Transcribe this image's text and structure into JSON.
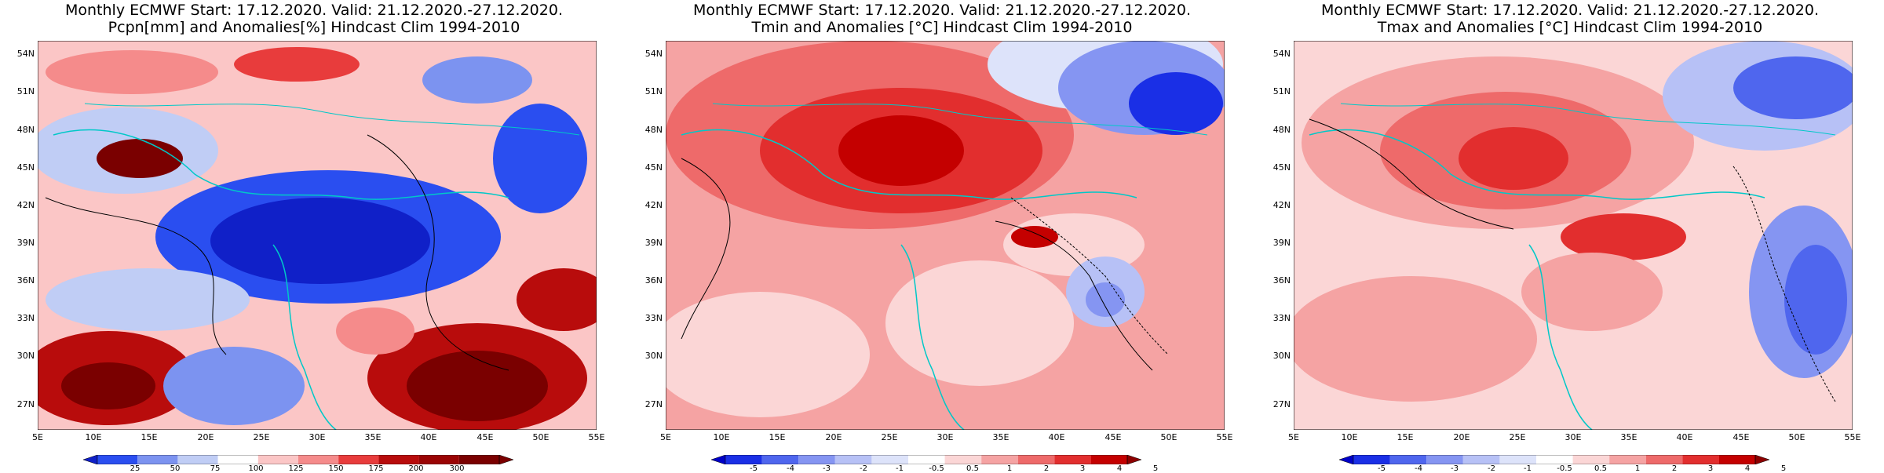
{
  "panels": [
    {
      "title1": "Monthly ECMWF Start: 17.12.2020. Valid: 21.12.2020.-27.12.2020.",
      "title2": "Pcpn[mm] and Anomalies[%] Hindcast Clim 1994-2010",
      "colorbar_labels": [
        "25",
        "50",
        "75",
        "100",
        "125",
        "150",
        "175",
        "200",
        "300"
      ],
      "colorbar_colors": [
        "#1020c8",
        "#2a4ef0",
        "#7c93f0",
        "#c0cdf5",
        "#ffffff",
        "#fbc6c6",
        "#f58b8b",
        "#e83c3c",
        "#b80c0c",
        "#7a0000"
      ]
    },
    {
      "title1": "Monthly ECMWF Start: 17.12.2020. Valid: 21.12.2020.-27.12.2020.",
      "title2": "Tmin and Anomalies [°C] Hindcast Clim 1994-2010",
      "colorbar_labels": [
        "-5",
        "-4",
        "-3",
        "-2",
        "-1",
        "-0.5",
        "0.5",
        "1",
        "2",
        "3",
        "4",
        "5"
      ],
      "colorbar_colors": [
        "#0000c8",
        "#1a2fe6",
        "#4f66ee",
        "#8595f2",
        "#b7c1f6",
        "#dde3fa",
        "#ffffff",
        "#fbd6d6",
        "#f5a3a3",
        "#ee6a6a",
        "#e22e2e",
        "#c40000",
        "#8c0000"
      ]
    },
    {
      "title1": "Monthly ECMWF Start: 17.12.2020. Valid: 21.12.2020.-27.12.2020.",
      "title2": "Tmax and Anomalies [°C] Hindcast Clim 1994-2010",
      "colorbar_labels": [
        "-5",
        "-4",
        "-3",
        "-2",
        "-1",
        "-0.5",
        "0.5",
        "1",
        "2",
        "3",
        "4",
        "5"
      ],
      "colorbar_colors": [
        "#0000c8",
        "#1a2fe6",
        "#4f66ee",
        "#8595f2",
        "#b7c1f6",
        "#dde3fa",
        "#ffffff",
        "#fbd6d6",
        "#f5a3a3",
        "#ee6a6a",
        "#e22e2e",
        "#c40000",
        "#8c0000"
      ]
    }
  ],
  "lat_labels": [
    "54N",
    "51N",
    "48N",
    "45N",
    "42N",
    "39N",
    "36N",
    "33N",
    "30N",
    "27N"
  ],
  "lon_labels": [
    "5E",
    "10E",
    "15E",
    "20E",
    "25E",
    "30E",
    "35E",
    "40E",
    "45E",
    "50E",
    "55E"
  ]
}
